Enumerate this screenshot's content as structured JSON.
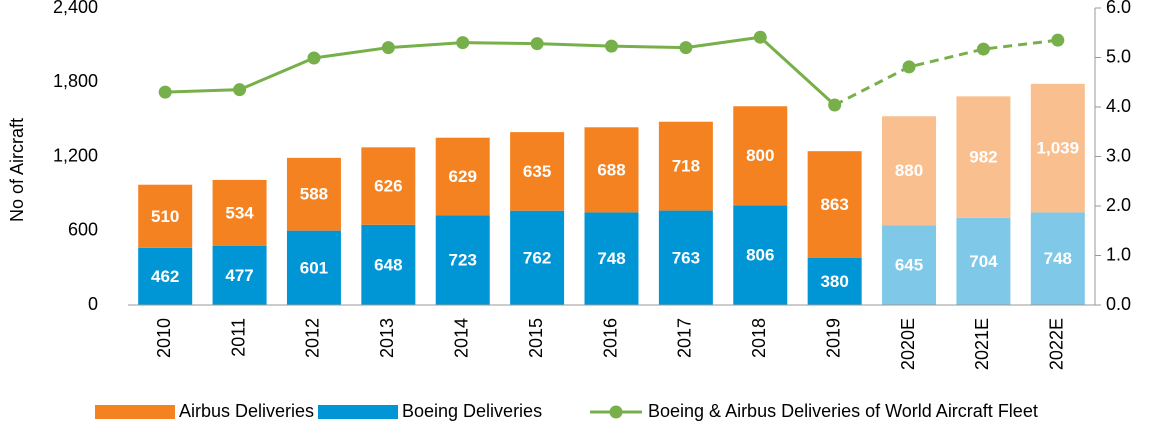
{
  "chart_data": {
    "type": "bar",
    "y_label": "No of Aircraft",
    "categories": [
      "2010",
      "2011",
      "2012",
      "2013",
      "2014",
      "2015",
      "2016",
      "2017",
      "2018",
      "2019",
      "2020E",
      "2021E",
      "2022E"
    ],
    "forecast_from": "2020E",
    "series": [
      {
        "name": "Airbus Deliveries",
        "color": "#f58220",
        "forecast_color": "#f9bf8f",
        "values": [
          510,
          534,
          588,
          626,
          629,
          635,
          688,
          718,
          800,
          863,
          880,
          982,
          1039
        ],
        "value_labels": [
          "510",
          "534",
          "588",
          "626",
          "629",
          "635",
          "688",
          "718",
          "800",
          "863",
          "880",
          "982",
          "1,039"
        ]
      },
      {
        "name": "Boeing Deliveries",
        "color": "#0096d6",
        "forecast_color": "#7fc8e8",
        "values": [
          462,
          477,
          601,
          648,
          723,
          762,
          748,
          763,
          806,
          380,
          645,
          704,
          748
        ]
      },
      {
        "name": "Boeing & Airbus Deliveries of World Aircraft Fleet",
        "color": "#77b04b",
        "axis": "y2",
        "line": true,
        "values": [
          4.3,
          4.35,
          4.99,
          5.2,
          5.3,
          5.28,
          5.23,
          5.2,
          5.41,
          4.04,
          4.81,
          5.17,
          5.35
        ]
      }
    ],
    "stack_order": [
      "Boeing Deliveries",
      "Airbus Deliveries"
    ],
    "ylim": [
      0,
      2400
    ],
    "yticks": [
      0,
      600,
      {
        "value": 1200,
        "label": "1,200"
      },
      {
        "value": 1800,
        "label": "1,800"
      },
      {
        "value": 2400,
        "label": "2,400"
      }
    ],
    "y2lim": [
      0,
      6
    ],
    "y2ticks": [
      {
        "value": 0,
        "label": "0.0"
      },
      {
        "value": 1,
        "label": "1.0"
      },
      {
        "value": 2,
        "label": "2.0"
      },
      {
        "value": 3,
        "label": "3.0"
      },
      {
        "value": 4,
        "label": "4.0"
      },
      {
        "value": 5,
        "label": "5.0"
      },
      {
        "value": 6,
        "label": "6.0"
      }
    ],
    "legend": "bottom"
  }
}
